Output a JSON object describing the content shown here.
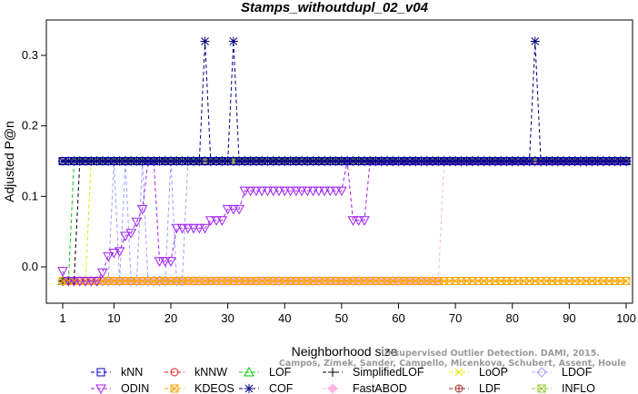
{
  "chart_data": {
    "type": "line",
    "title": "Stamps_withoutdupl_02_v04",
    "xlabel": "Neighborhood size",
    "ylabel": "Adjusted P@n",
    "xlim": [
      1,
      100
    ],
    "ylim": [
      -0.04,
      0.34
    ],
    "x_ticks": [
      1,
      10,
      20,
      30,
      40,
      50,
      60,
      70,
      80,
      90,
      100
    ],
    "y_ticks": [
      0.0,
      0.1,
      0.2,
      0.3
    ],
    "y_tick_labels": [
      "0.0",
      "0.1",
      "0.2",
      "0.3"
    ],
    "grid": false,
    "legend_position": "bottom",
    "watermark_lines": [
      "Unsupervised Outlier Detection. DAMI, 2015.",
      "Campos, Zimek, Sander, Campello, Micenkova, Schubert, Assent, Houle"
    ],
    "series": [
      {
        "name": "kNN",
        "color": "#0000cc",
        "marker": "square",
        "points": [
          [
            1,
            0.15
          ],
          [
            100,
            0.15
          ]
        ]
      },
      {
        "name": "kNNW",
        "color": "#e8191a",
        "marker": "circle",
        "points": [
          [
            1,
            0.15
          ],
          [
            100,
            0.15
          ]
        ]
      },
      {
        "name": "LOF",
        "color": "#00cc00",
        "marker": "triangle-up",
        "points": [
          [
            1,
            -0.02
          ],
          [
            2,
            -0.02
          ],
          [
            3,
            0.15
          ],
          [
            100,
            0.15
          ]
        ]
      },
      {
        "name": "SimplifiedLOF",
        "color": "#000000",
        "marker": "plus",
        "points": [
          [
            1,
            -0.02
          ],
          [
            2,
            -0.02
          ],
          [
            3,
            -0.02
          ],
          [
            4,
            0.15
          ],
          [
            100,
            0.15
          ]
        ]
      },
      {
        "name": "LoOP",
        "color": "#e6e600",
        "marker": "x",
        "points": [
          [
            1,
            -0.02
          ],
          [
            5,
            -0.02
          ],
          [
            6,
            0.15
          ],
          [
            100,
            0.15
          ]
        ]
      },
      {
        "name": "LDOF",
        "color": "#a0a0ff",
        "marker": "diamond",
        "points": [
          [
            1,
            -0.02
          ],
          [
            9,
            -0.02
          ],
          [
            10,
            0.15
          ],
          [
            11,
            -0.02
          ],
          [
            12,
            0.15
          ],
          [
            13,
            -0.02
          ],
          [
            15,
            0.15
          ],
          [
            16,
            -0.02
          ],
          [
            19,
            -0.02
          ],
          [
            20,
            0.15
          ],
          [
            21,
            -0.02
          ],
          [
            22,
            -0.02
          ],
          [
            23,
            0.15
          ],
          [
            100,
            0.15
          ]
        ]
      },
      {
        "name": "ODIN",
        "color": "#a020f0",
        "marker": "triangle-down",
        "points": [
          [
            1,
            -0.006
          ],
          [
            2,
            -0.02
          ],
          [
            3,
            -0.02
          ],
          [
            4,
            -0.02
          ],
          [
            5,
            -0.02
          ],
          [
            6,
            -0.02
          ],
          [
            7,
            -0.02
          ],
          [
            8,
            -0.008
          ],
          [
            9,
            0.015
          ],
          [
            10,
            0.02
          ],
          [
            11,
            0.022
          ],
          [
            12,
            0.044
          ],
          [
            13,
            0.048
          ],
          [
            14,
            0.064
          ],
          [
            15,
            0.082
          ],
          [
            16,
            0.15
          ],
          [
            17,
            0.15
          ],
          [
            18,
            0.008
          ],
          [
            19,
            0.008
          ],
          [
            20,
            0.008
          ],
          [
            21,
            0.055
          ],
          [
            22,
            0.055
          ],
          [
            23,
            0.055
          ],
          [
            24,
            0.055
          ],
          [
            25,
            0.055
          ],
          [
            26,
            0.055
          ],
          [
            27,
            0.066
          ],
          [
            28,
            0.066
          ],
          [
            29,
            0.066
          ],
          [
            30,
            0.082
          ],
          [
            31,
            0.082
          ],
          [
            32,
            0.082
          ],
          [
            33,
            0.108
          ],
          [
            34,
            0.108
          ],
          [
            35,
            0.108
          ],
          [
            36,
            0.108
          ],
          [
            37,
            0.108
          ],
          [
            38,
            0.108
          ],
          [
            39,
            0.108
          ],
          [
            40,
            0.108
          ],
          [
            41,
            0.108
          ],
          [
            42,
            0.108
          ],
          [
            43,
            0.108
          ],
          [
            44,
            0.108
          ],
          [
            45,
            0.108
          ],
          [
            46,
            0.108
          ],
          [
            47,
            0.108
          ],
          [
            48,
            0.108
          ],
          [
            49,
            0.108
          ],
          [
            50,
            0.108
          ],
          [
            51,
            0.15
          ],
          [
            52,
            0.066
          ],
          [
            53,
            0.066
          ],
          [
            54,
            0.066
          ],
          [
            55,
            0.15
          ],
          [
            100,
            0.15
          ]
        ]
      },
      {
        "name": "KDEOS",
        "color": "#ffa500",
        "marker": "square-x",
        "points": [
          [
            1,
            -0.02
          ],
          [
            100,
            -0.02
          ]
        ]
      },
      {
        "name": "COF",
        "color": "#000080",
        "marker": "asterisk",
        "points": [
          [
            1,
            0.15
          ],
          [
            25,
            0.15
          ],
          [
            26,
            0.32
          ],
          [
            27,
            0.15
          ],
          [
            30,
            0.15
          ],
          [
            31,
            0.32
          ],
          [
            32,
            0.15
          ],
          [
            83,
            0.15
          ],
          [
            84,
            0.32
          ],
          [
            85,
            0.15
          ],
          [
            100,
            0.15
          ]
        ]
      },
      {
        "name": "FastABOD",
        "color": "#ffb6e6",
        "marker": "diamond-filled",
        "points": [
          [
            1,
            -0.02
          ],
          [
            67,
            -0.02
          ],
          [
            68,
            0.15
          ],
          [
            100,
            0.15
          ]
        ]
      },
      {
        "name": "LDF",
        "color": "#a52a2a",
        "marker": "circle-plus",
        "points": [
          [
            1,
            0.15
          ],
          [
            100,
            0.15
          ]
        ]
      },
      {
        "name": "INFLO",
        "color": "#99cc33",
        "marker": "square-x",
        "points": [
          [
            1,
            0.15
          ],
          [
            100,
            0.15
          ]
        ]
      }
    ]
  }
}
